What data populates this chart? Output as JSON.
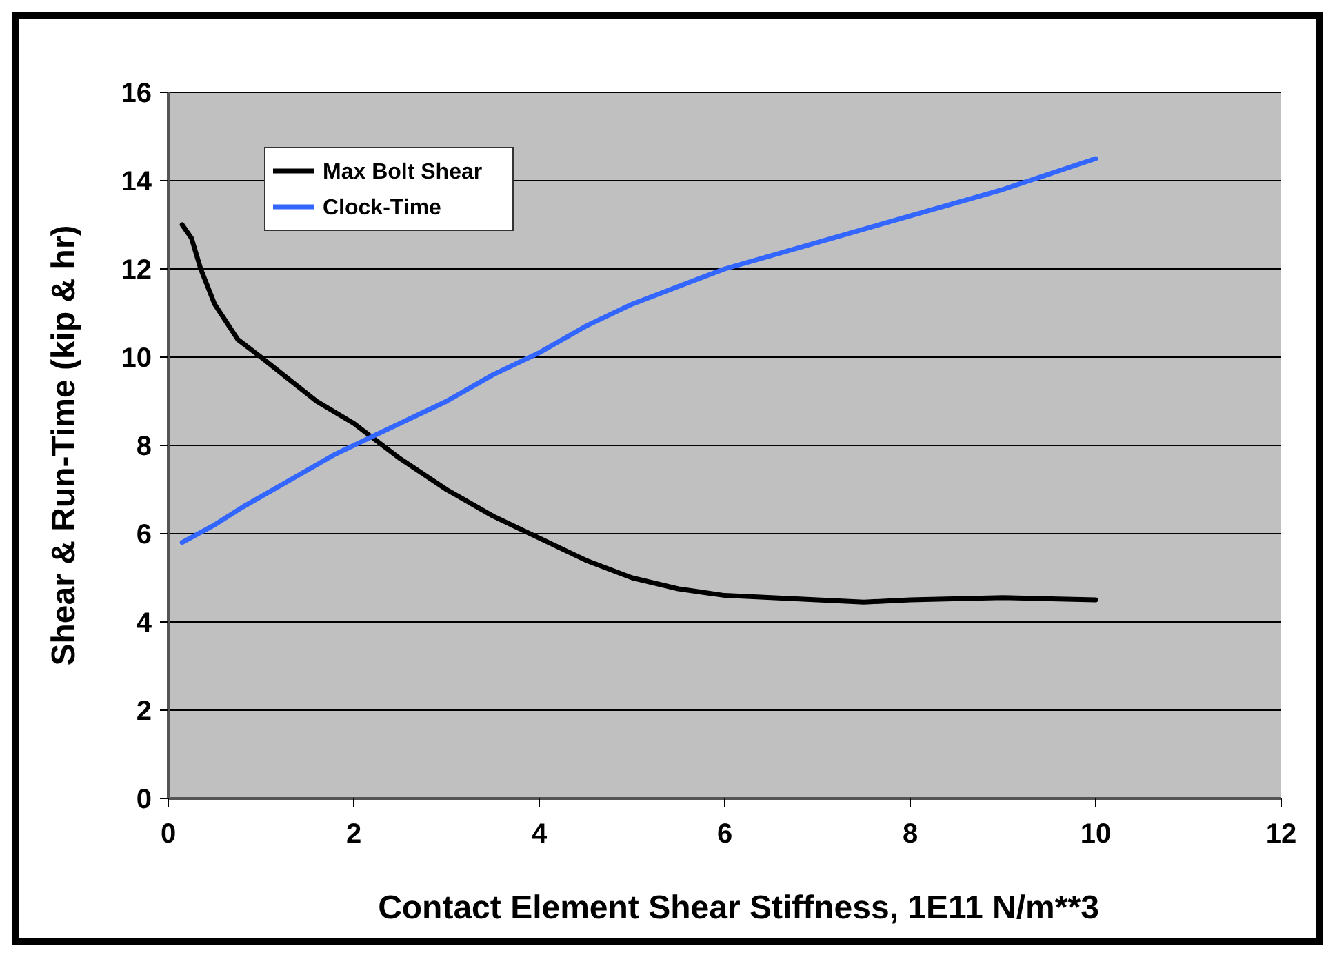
{
  "chart_data": {
    "type": "line",
    "xlabel": "Contact Element Shear Stiffness, 1E11 N/m**3",
    "ylabel": "Shear & Run-Time (kip & hr)",
    "xlim": [
      0,
      12
    ],
    "xticks": [
      0,
      2,
      4,
      6,
      8,
      10,
      12
    ],
    "ylim": [
      0,
      16
    ],
    "yticks": [
      0,
      2,
      4,
      6,
      8,
      10,
      12,
      14,
      16
    ],
    "grid": "y",
    "legend": "top left",
    "marker": "none",
    "line_style": "solid",
    "series": [
      {
        "name": "Max Bolt Shear",
        "color": "#000000",
        "x": [
          0.15,
          0.25,
          0.35,
          0.5,
          0.75,
          1,
          1.3,
          1.6,
          2,
          2.5,
          3,
          3.5,
          4,
          4.5,
          5,
          5.5,
          6,
          7,
          7.5,
          8,
          9,
          10
        ],
        "values": [
          13.0,
          12.7,
          12.0,
          11.2,
          10.4,
          10.0,
          9.5,
          9.0,
          8.5,
          7.7,
          7.0,
          6.4,
          5.9,
          5.4,
          5.0,
          4.75,
          4.6,
          4.5,
          4.45,
          4.5,
          4.55,
          4.5
        ]
      },
      {
        "name": "Clock-Time",
        "color": "#3366ff",
        "x": [
          0.15,
          0.5,
          0.8,
          1.3,
          1.8,
          2.2,
          3,
          3.5,
          4,
          4.5,
          5,
          5.5,
          6,
          7,
          8,
          9,
          10
        ],
        "values": [
          5.8,
          6.2,
          6.6,
          7.2,
          7.8,
          8.2,
          9.0,
          9.6,
          10.1,
          10.7,
          11.2,
          11.6,
          12.0,
          12.6,
          13.2,
          13.8,
          14.5
        ]
      }
    ]
  }
}
